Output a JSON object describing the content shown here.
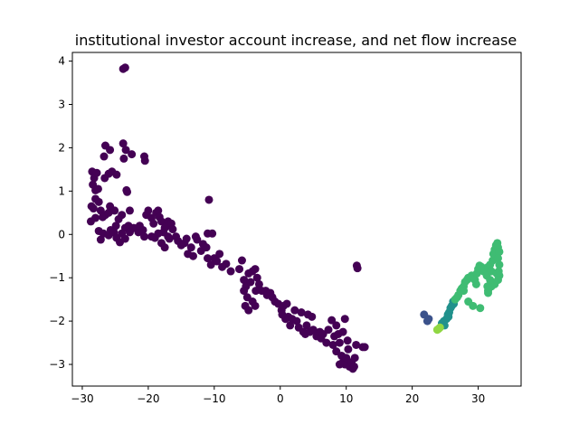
{
  "chart_data": {
    "type": "scatter",
    "title": "institutional investor account increase, and net flow increase",
    "xlabel": "",
    "ylabel": "",
    "xlim": [
      -31.5,
      36.5
    ],
    "ylim": [
      -3.5,
      4.2
    ],
    "grid": false,
    "x_ticks": [
      -30,
      -20,
      -10,
      0,
      10,
      20,
      30
    ],
    "y_ticks": [
      -3,
      -2,
      -1,
      0,
      1,
      2,
      3,
      4
    ],
    "x_tick_labels": [
      "−30",
      "−20",
      "−10",
      "0",
      "10",
      "20",
      "30"
    ],
    "y_tick_labels": [
      "−3",
      "−2",
      "−1",
      "0",
      "1",
      "2",
      "3",
      "4"
    ],
    "colors": {
      "purple": "#440154",
      "slate": "#3b528b",
      "teal": "#21918c",
      "green": "#3fbc73",
      "lime": "#90d743"
    },
    "series": [
      {
        "color_key": "purple",
        "points": [
          [
            -23.5,
            3.85
          ],
          [
            -23.8,
            3.82
          ],
          [
            -28.5,
            1.45
          ],
          [
            -28.2,
            1.3
          ],
          [
            -28.4,
            1.15
          ],
          [
            -27.8,
            1.42
          ],
          [
            -28.0,
            1.02
          ],
          [
            -27.6,
            1.05
          ],
          [
            -28.6,
            0.65
          ],
          [
            -28.3,
            0.6
          ],
          [
            -27.5,
            0.75
          ],
          [
            -28.0,
            0.82
          ],
          [
            -27.2,
            0.55
          ],
          [
            -26.9,
            0.4
          ],
          [
            -28.7,
            0.3
          ],
          [
            -28.0,
            0.38
          ],
          [
            -27.5,
            0.08
          ],
          [
            -27.2,
            -0.12
          ],
          [
            -26.8,
            0.02
          ],
          [
            -26.5,
            0.45
          ],
          [
            -26.5,
            2.05
          ],
          [
            -25.8,
            1.95
          ],
          [
            -26.7,
            1.8
          ],
          [
            -26.0,
            1.4
          ],
          [
            -25.5,
            1.45
          ],
          [
            -26.6,
            1.3
          ],
          [
            -24.8,
            1.38
          ],
          [
            -23.8,
            2.1
          ],
          [
            -23.4,
            1.95
          ],
          [
            -22.5,
            1.85
          ],
          [
            -23.7,
            1.75
          ],
          [
            -20.6,
            1.8
          ],
          [
            -20.5,
            1.7
          ],
          [
            -23.3,
            1.02
          ],
          [
            -23.2,
            0.98
          ],
          [
            -25.8,
            0.65
          ],
          [
            -26.0,
            0.5
          ],
          [
            -25.1,
            0.55
          ],
          [
            -24.5,
            0.35
          ],
          [
            -24.9,
            0.2
          ],
          [
            -24.0,
            0.45
          ],
          [
            -23.5,
            0.15
          ],
          [
            -22.8,
            0.55
          ],
          [
            -23.0,
            0.2
          ],
          [
            -25.7,
            0.1
          ],
          [
            -26.0,
            -0.02
          ],
          [
            -25.2,
            0.05
          ],
          [
            -24.8,
            -0.08
          ],
          [
            -24.3,
            -0.18
          ],
          [
            -24.0,
            0.02
          ],
          [
            -23.5,
            -0.1
          ],
          [
            -22.8,
            0.05
          ],
          [
            -22.2,
            0.15
          ],
          [
            -21.5,
            0.05
          ],
          [
            -21.3,
            0.2
          ],
          [
            -20.8,
            0.1
          ],
          [
            -20.6,
            -0.05
          ],
          [
            -20.3,
            0.45
          ],
          [
            -20.0,
            0.55
          ],
          [
            -19.5,
            0.38
          ],
          [
            -19.2,
            0.25
          ],
          [
            -18.8,
            0.5
          ],
          [
            -18.5,
            0.55
          ],
          [
            -18.3,
            0.4
          ],
          [
            -18.0,
            0.3
          ],
          [
            -17.7,
            0.05
          ],
          [
            -17.5,
            0.15
          ],
          [
            -17.2,
            0.2
          ],
          [
            -17.0,
            0.3
          ],
          [
            -16.5,
            0.25
          ],
          [
            -16.3,
            0.12
          ],
          [
            -18.0,
            -0.2
          ],
          [
            -17.5,
            -0.3
          ],
          [
            -17.0,
            -0.05
          ],
          [
            -16.8,
            -0.1
          ],
          [
            -19.5,
            -0.05
          ],
          [
            -19.0,
            -0.08
          ],
          [
            -18.5,
            0.02
          ],
          [
            -15.8,
            -0.05
          ],
          [
            -15.5,
            -0.15
          ],
          [
            -15.0,
            -0.25
          ],
          [
            -14.5,
            -0.2
          ],
          [
            -14.2,
            -0.1
          ],
          [
            -14.0,
            -0.45
          ],
          [
            -13.5,
            -0.3
          ],
          [
            -13.2,
            -0.5
          ],
          [
            -12.8,
            -0.05
          ],
          [
            -12.6,
            -0.12
          ],
          [
            -12.0,
            -0.38
          ],
          [
            -11.7,
            -0.22
          ],
          [
            -11.2,
            -0.3
          ],
          [
            -11.0,
            0.02
          ],
          [
            -10.3,
            0.02
          ],
          [
            -10.8,
            0.8
          ],
          [
            -11.0,
            -0.55
          ],
          [
            -10.5,
            -0.7
          ],
          [
            -10.0,
            -0.55
          ],
          [
            -9.6,
            -0.62
          ],
          [
            -9.2,
            -0.45
          ],
          [
            -8.8,
            -0.75
          ],
          [
            -8.2,
            -0.68
          ],
          [
            -7.5,
            -0.85
          ],
          [
            -6.2,
            -0.8
          ],
          [
            -5.8,
            -0.6
          ],
          [
            -5.5,
            -1.05
          ],
          [
            -5.2,
            -1.2
          ],
          [
            -4.8,
            -0.9
          ],
          [
            -4.5,
            -1.1
          ],
          [
            -4.2,
            -0.85
          ],
          [
            -3.8,
            -0.8
          ],
          [
            -3.7,
            -1.3
          ],
          [
            -3.5,
            -1.0
          ],
          [
            -3.2,
            -1.15
          ],
          [
            -2.8,
            -1.3
          ],
          [
            -2.2,
            -1.3
          ],
          [
            -2.0,
            -1.4
          ],
          [
            -1.5,
            -1.35
          ],
          [
            -1.2,
            -1.45
          ],
          [
            -0.8,
            -1.55
          ],
          [
            -5.5,
            -1.3
          ],
          [
            -5.0,
            -1.45
          ],
          [
            -5.3,
            -1.65
          ],
          [
            -4.8,
            -1.75
          ],
          [
            -4.2,
            -1.55
          ],
          [
            -3.8,
            -1.65
          ],
          [
            -0.3,
            -1.6
          ],
          [
            0.2,
            -1.75
          ],
          [
            0.5,
            -1.65
          ],
          [
            1.0,
            -1.6
          ],
          [
            1.2,
            -1.9
          ],
          [
            0.8,
            -1.95
          ],
          [
            0.3,
            -1.85
          ],
          [
            1.5,
            -2.1
          ],
          [
            1.8,
            -1.95
          ],
          [
            2.2,
            -1.75
          ],
          [
            2.5,
            -2.0
          ],
          [
            2.8,
            -2.15
          ],
          [
            3.2,
            -1.8
          ],
          [
            3.5,
            -2.25
          ],
          [
            3.8,
            -2.3
          ],
          [
            4.0,
            -2.1
          ],
          [
            4.2,
            -1.85
          ],
          [
            4.5,
            -2.25
          ],
          [
            4.8,
            -1.9
          ],
          [
            5.0,
            -2.2
          ],
          [
            5.5,
            -2.35
          ],
          [
            6.0,
            -2.25
          ],
          [
            6.2,
            -2.4
          ],
          [
            6.5,
            -2.3
          ],
          [
            7.0,
            -2.5
          ],
          [
            7.3,
            -2.2
          ],
          [
            7.8,
            -1.98
          ],
          [
            8.0,
            -2.55
          ],
          [
            8.2,
            -2.35
          ],
          [
            8.5,
            -2.7
          ],
          [
            8.8,
            -2.3
          ],
          [
            9.0,
            -2.5
          ],
          [
            9.3,
            -2.8
          ],
          [
            9.5,
            -2.95
          ],
          [
            9.8,
            -3.0
          ],
          [
            10.0,
            -2.85
          ],
          [
            10.3,
            -2.65
          ],
          [
            10.5,
            -3.05
          ],
          [
            10.8,
            -2.95
          ],
          [
            11.0,
            -3.1
          ],
          [
            11.3,
            -2.85
          ],
          [
            11.5,
            -2.55
          ],
          [
            11.2,
            -3.05
          ],
          [
            9.0,
            -3.0
          ],
          [
            9.5,
            -2.25
          ],
          [
            9.8,
            -1.95
          ],
          [
            10.2,
            -2.45
          ],
          [
            8.5,
            -2.1
          ],
          [
            12.5,
            -2.6
          ],
          [
            12.8,
            -2.6
          ],
          [
            11.6,
            -0.72
          ],
          [
            11.7,
            -0.78
          ]
        ]
      },
      {
        "color_key": "slate",
        "points": [
          [
            21.8,
            -1.85
          ],
          [
            22.3,
            -2.0
          ],
          [
            22.5,
            -1.95
          ]
        ]
      },
      {
        "color_key": "teal",
        "points": [
          [
            24.5,
            -2.05
          ],
          [
            24.8,
            -2.0
          ],
          [
            25.2,
            -1.95
          ],
          [
            25.4,
            -1.85
          ],
          [
            25.6,
            -1.8
          ],
          [
            25.8,
            -1.7
          ],
          [
            26.0,
            -1.65
          ],
          [
            26.2,
            -1.55
          ],
          [
            24.9,
            -2.1
          ],
          [
            25.5,
            -1.9
          ],
          [
            26.3,
            -1.6
          ]
        ]
      },
      {
        "color_key": "green",
        "points": [
          [
            26.5,
            -1.5
          ],
          [
            26.8,
            -1.45
          ],
          [
            27.0,
            -1.4
          ],
          [
            27.3,
            -1.3
          ],
          [
            27.5,
            -1.25
          ],
          [
            27.8,
            -1.2
          ],
          [
            28.0,
            -1.1
          ],
          [
            28.3,
            -1.05
          ],
          [
            28.5,
            -1.0
          ],
          [
            28.8,
            -1.0
          ],
          [
            29.0,
            -0.95
          ],
          [
            29.5,
            -1.05
          ],
          [
            29.8,
            -0.9
          ],
          [
            30.0,
            -0.8
          ],
          [
            30.2,
            -0.72
          ],
          [
            30.5,
            -0.75
          ],
          [
            30.8,
            -0.85
          ],
          [
            31.0,
            -0.8
          ],
          [
            31.3,
            -0.95
          ],
          [
            31.5,
            -0.75
          ],
          [
            31.8,
            -0.7
          ],
          [
            32.0,
            -0.85
          ],
          [
            32.2,
            -0.6
          ],
          [
            32.3,
            -0.45
          ],
          [
            32.5,
            -0.35
          ],
          [
            32.7,
            -0.25
          ],
          [
            32.9,
            -0.2
          ],
          [
            33.0,
            -0.3
          ],
          [
            33.2,
            -0.4
          ],
          [
            33.0,
            -0.55
          ],
          [
            33.2,
            -0.7
          ],
          [
            33.1,
            -0.85
          ],
          [
            32.8,
            -0.9
          ],
          [
            33.2,
            -0.95
          ],
          [
            33.0,
            -1.05
          ],
          [
            32.5,
            -1.15
          ],
          [
            32.0,
            -1.2
          ],
          [
            31.8,
            -1.05
          ],
          [
            31.5,
            -1.3
          ],
          [
            31.4,
            -1.2
          ],
          [
            31.5,
            -1.35
          ],
          [
            28.5,
            -1.55
          ],
          [
            29.2,
            -1.65
          ],
          [
            30.3,
            -1.7
          ],
          [
            27.8,
            -1.3
          ],
          [
            29.7,
            -1.15
          ]
        ]
      },
      {
        "color_key": "lime",
        "points": [
          [
            23.8,
            -2.2
          ],
          [
            24.0,
            -2.18
          ],
          [
            24.2,
            -2.15
          ]
        ]
      }
    ]
  }
}
